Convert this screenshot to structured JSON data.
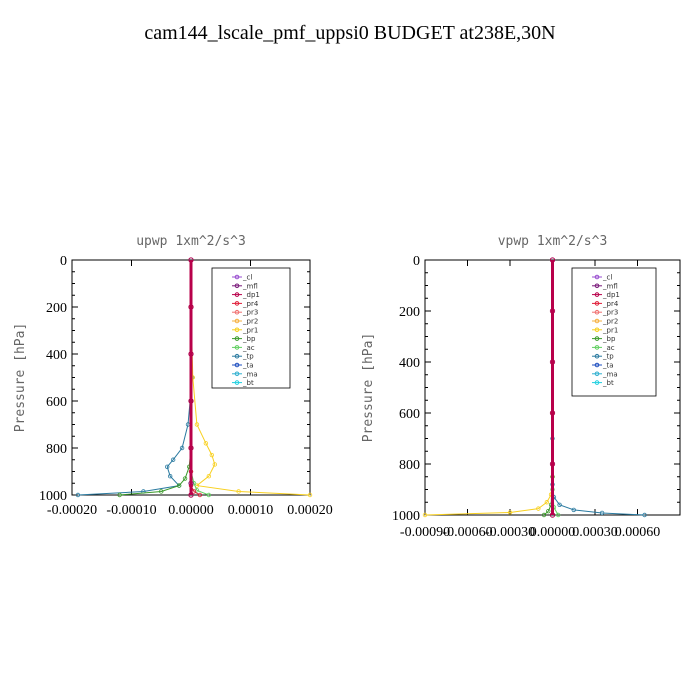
{
  "page": {
    "title": "cam144_lscale_pmf_uppsi0  BUDGET at238E,30N"
  },
  "colors": {
    "_cl": "#9a4fd0",
    "_mfl": "#7a1a7a",
    "_dp1": "#b8004a",
    "_pr4": "#e0203a",
    "_pr3": "#f07070",
    "_pr2": "#f5b040",
    "_pr1": "#f8d020",
    "_bp": "#3a9a2a",
    "_ac": "#60d060",
    "_tp": "#2a7aa0",
    "_ta": "#2050c0",
    "_ma": "#30b0d0",
    "_bt": "#20d0e0"
  },
  "chart_data": [
    {
      "type": "line",
      "title": "upwp  1xm^2/s^3",
      "ylabel": "Pressure [hPa]",
      "xlabel": "",
      "xlim": [
        -0.0002,
        0.0002
      ],
      "ylim": [
        1000,
        0
      ],
      "xticks": [
        "-0.00020",
        "-0.00010",
        "0.00000",
        "0.00010",
        "0.00020"
      ],
      "yticks": [
        "0",
        "200",
        "400",
        "600",
        "800",
        "1000"
      ],
      "legend": [
        "_cl",
        "_mfl",
        "_dp1",
        "_pr4",
        "_pr3",
        "_pr2",
        "_pr1",
        "_bp",
        "_ac",
        "_tp",
        "_ta",
        "_ma",
        "_bt"
      ],
      "legend_position": "top-right",
      "series": [
        {
          "name": "_tp",
          "x": [
            0,
            2e-06,
            -5e-06,
            -1.5e-05,
            -3e-05,
            -4e-05,
            -3.5e-05,
            -2e-05,
            -8e-05,
            -0.00019
          ],
          "y": [
            200,
            500,
            700,
            800,
            850,
            880,
            920,
            960,
            985,
            1000
          ]
        },
        {
          "name": "_pr1",
          "x": [
            0,
            3e-06,
            1e-05,
            2.5e-05,
            3.5e-05,
            4e-05,
            3e-05,
            1e-05,
            8e-05,
            0.0002
          ],
          "y": [
            200,
            500,
            700,
            780,
            830,
            870,
            920,
            960,
            985,
            1000
          ]
        },
        {
          "name": "_bp",
          "x": [
            0,
            0,
            -3e-06,
            -1e-05,
            -2e-05,
            -5e-05,
            -0.00012
          ],
          "y": [
            600,
            800,
            880,
            930,
            960,
            985,
            1000
          ]
        },
        {
          "name": "_ac",
          "x": [
            0,
            0,
            5e-06,
            1e-05,
            3e-05
          ],
          "y": [
            800,
            900,
            950,
            980,
            1000
          ]
        },
        {
          "name": "_pr4",
          "x": [
            0,
            0,
            5e-06,
            1.5e-05
          ],
          "y": [
            900,
            960,
            985,
            1000
          ]
        },
        {
          "name": "_mfl",
          "x": [
            0,
            0,
            0,
            0,
            0,
            0,
            0
          ],
          "y": [
            0,
            200,
            400,
            600,
            800,
            950,
            1000
          ]
        },
        {
          "name": "_dp1",
          "x": [
            0,
            0,
            0,
            0,
            0,
            0
          ],
          "y": [
            0,
            200,
            400,
            600,
            800,
            1000
          ]
        }
      ]
    },
    {
      "type": "line",
      "title": "vpwp  1xm^2/s^3",
      "ylabel": "Pressure [hPa]",
      "xlabel": "",
      "xlim": [
        -0.0009,
        0.0009
      ],
      "ylim": [
        1000,
        0
      ],
      "xticks": [
        "-0.00090",
        "-0.00060",
        "-0.00030",
        "0.00000",
        "0.00030",
        "0.00060"
      ],
      "yticks": [
        "0",
        "200",
        "400",
        "600",
        "800",
        "1000"
      ],
      "legend": [
        "_cl",
        "_mfl",
        "_dp1",
        "_pr4",
        "_pr3",
        "_pr2",
        "_pr1",
        "_bp",
        "_ac",
        "_tp",
        "_ta",
        "_ma",
        "_bt"
      ],
      "legend_position": "top-right",
      "series": [
        {
          "name": "_pr1",
          "x": [
            0,
            0,
            -1e-05,
            -4e-05,
            -0.0001,
            -0.0003,
            -0.0009
          ],
          "y": [
            600,
            850,
            920,
            950,
            975,
            990,
            1000
          ]
        },
        {
          "name": "_tp",
          "x": [
            0,
            0,
            1e-05,
            5e-05,
            0.00015,
            0.00035,
            0.00065
          ],
          "y": [
            700,
            880,
            930,
            960,
            980,
            992,
            1000
          ]
        },
        {
          "name": "_bp",
          "x": [
            0,
            -1e-05,
            -3e-05,
            -6e-05
          ],
          "y": [
            850,
            960,
            985,
            1000
          ]
        },
        {
          "name": "_ac",
          "x": [
            0,
            1e-05,
            4e-05
          ],
          "y": [
            900,
            970,
            1000
          ]
        },
        {
          "name": "_mfl",
          "x": [
            0,
            0,
            0,
            0,
            0,
            0
          ],
          "y": [
            0,
            200,
            400,
            600,
            800,
            1000
          ]
        },
        {
          "name": "_dp1",
          "x": [
            0,
            0,
            0,
            0,
            0,
            0
          ],
          "y": [
            0,
            200,
            400,
            600,
            800,
            1000
          ]
        }
      ]
    }
  ]
}
